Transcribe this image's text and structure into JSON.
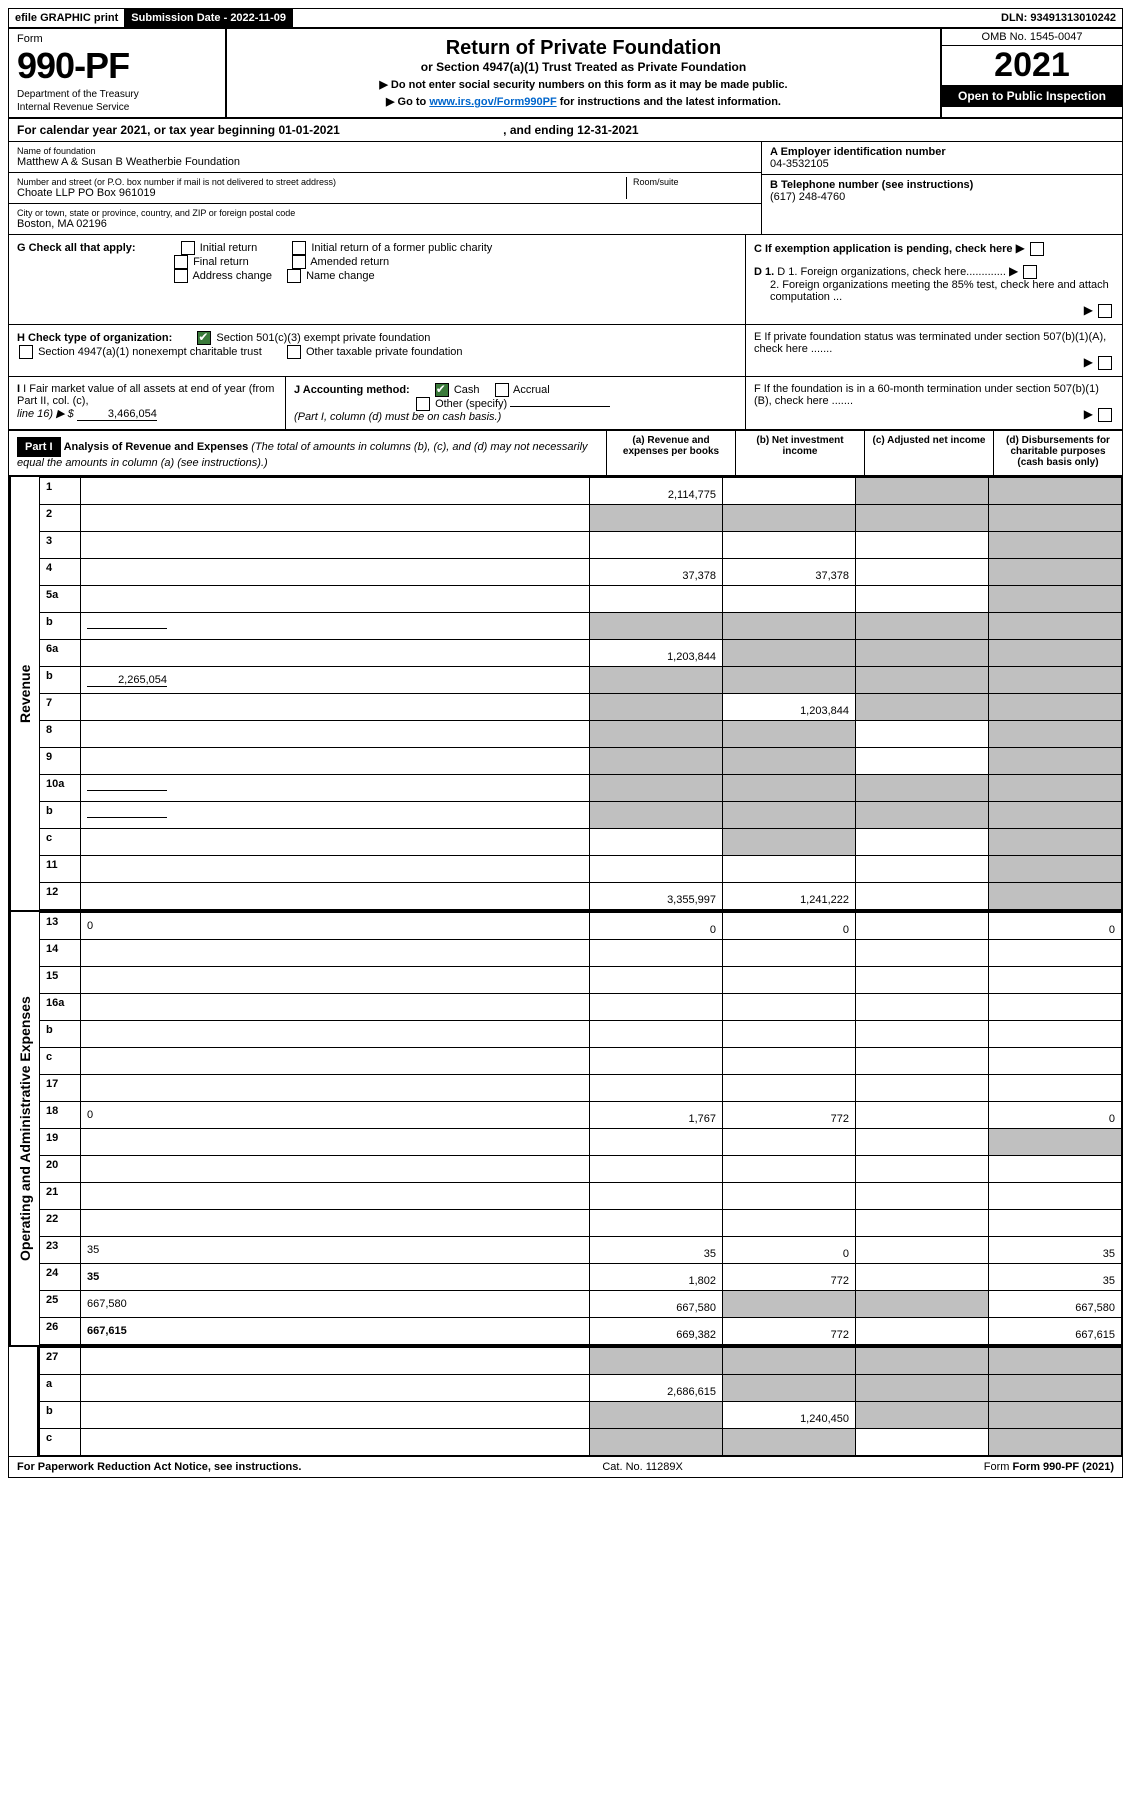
{
  "top": {
    "efile": "efile GRAPHIC print",
    "subdate_label": "Submission Date - 2022-11-09",
    "dln": "DLN: 93491313010242"
  },
  "formbox": {
    "form_label": "Form",
    "form_no": "990-PF",
    "dept1": "Department of the Treasury",
    "dept2": "Internal Revenue Service"
  },
  "title": {
    "main": "Return of Private Foundation",
    "sub": "or Section 4947(a)(1) Trust Treated as Private Foundation",
    "line1": "▶ Do not enter social security numbers on this form as it may be made public.",
    "line2_pre": "▶ Go to ",
    "line2_link": "www.irs.gov/Form990PF",
    "line2_post": " for instructions and the latest information."
  },
  "yearbox": {
    "omb": "OMB No. 1545-0047",
    "year": "2021",
    "open": "Open to Public Inspection"
  },
  "calrow": {
    "text_a": "For calendar year 2021, or tax year beginning 01-01-2021",
    "text_b": ", and ending 12-31-2021"
  },
  "info": {
    "name_label": "Name of foundation",
    "name": "Matthew A & Susan B Weatherbie Foundation",
    "addr_label": "Number and street (or P.O. box number if mail is not delivered to street address)",
    "addr": "Choate LLP PO Box 961019",
    "room_label": "Room/suite",
    "city_label": "City or town, state or province, country, and ZIP or foreign postal code",
    "city": "Boston, MA  02196",
    "a_label": "A Employer identification number",
    "a_val": "04-3532105",
    "b_label": "B Telephone number (see instructions)",
    "b_val": "(617) 248-4760",
    "c_label": "C If exemption application is pending, check here",
    "d1": "D 1. Foreign organizations, check here.............",
    "d2": "2. Foreign organizations meeting the 85% test, check here and attach computation ...",
    "e": "E  If private foundation status was terminated under section 507(b)(1)(A), check here .......",
    "f": "F  If the foundation is in a 60-month termination under section 507(b)(1)(B), check here ......."
  },
  "g": {
    "label": "G Check all that apply:",
    "o1": "Initial return",
    "o2": "Final return",
    "o3": "Address change",
    "o4": "Initial return of a former public charity",
    "o5": "Amended return",
    "o6": "Name change"
  },
  "h": {
    "label": "H Check type of organization:",
    "o1": "Section 501(c)(3) exempt private foundation",
    "o2": "Section 4947(a)(1) nonexempt charitable trust",
    "o3": "Other taxable private foundation"
  },
  "i": {
    "label": "I Fair market value of all assets at end of year (from Part II, col. (c),",
    "line": "line 16) ▶ $",
    "val": "3,466,054"
  },
  "j": {
    "label": "J Accounting method:",
    "o1": "Cash",
    "o2": "Accrual",
    "o3": "Other (specify)",
    "note": "(Part I, column (d) must be on cash basis.)"
  },
  "part1": {
    "label": "Part I",
    "title": "Analysis of Revenue and Expenses",
    "note": "(The total of amounts in columns (b), (c), and (d) may not necessarily equal the amounts in column (a) (see instructions).)",
    "col_a": "(a)  Revenue and expenses per books",
    "col_b": "(b)  Net investment income",
    "col_c": "(c)  Adjusted net income",
    "col_d": "(d)  Disbursements for charitable purposes (cash basis only)"
  },
  "vlabels": {
    "rev": "Revenue",
    "exp": "Operating and Administrative Expenses"
  },
  "rows": [
    {
      "n": "1",
      "d": "",
      "a": "2,114,775",
      "b": "",
      "c": "",
      "shade_c": true,
      "shade_d": true
    },
    {
      "n": "2",
      "d": "",
      "nodots": true,
      "a": "",
      "b": "",
      "c": "",
      "shade_a": true,
      "shade_b": true,
      "shade_c": true,
      "shade_d": true
    },
    {
      "n": "3",
      "d": "",
      "a": "",
      "b": "",
      "c": "",
      "shade_d": true
    },
    {
      "n": "4",
      "d": "",
      "a": "37,378",
      "b": "37,378",
      "c": "",
      "shade_d": true
    },
    {
      "n": "5a",
      "d": "",
      "a": "",
      "b": "",
      "c": "",
      "shade_d": true
    },
    {
      "n": "b",
      "d": "",
      "inline": "",
      "a": "",
      "b": "",
      "c": "",
      "shade_a": true,
      "shade_b": true,
      "shade_c": true,
      "shade_d": true
    },
    {
      "n": "6a",
      "d": "",
      "a": "1,203,844",
      "b": "",
      "c": "",
      "shade_b": true,
      "shade_c": true,
      "shade_d": true
    },
    {
      "n": "b",
      "d": "",
      "inline": "2,265,054",
      "a": "",
      "b": "",
      "c": "",
      "shade_a": true,
      "shade_b": true,
      "shade_c": true,
      "shade_d": true
    },
    {
      "n": "7",
      "d": "",
      "a": "",
      "b": "1,203,844",
      "c": "",
      "shade_a": true,
      "shade_c": true,
      "shade_d": true
    },
    {
      "n": "8",
      "d": "",
      "a": "",
      "b": "",
      "c": "",
      "shade_a": true,
      "shade_b": true,
      "shade_d": true
    },
    {
      "n": "9",
      "d": "",
      "a": "",
      "b": "",
      "c": "",
      "shade_a": true,
      "shade_b": true,
      "shade_d": true
    },
    {
      "n": "10a",
      "d": "",
      "inline": "",
      "a": "",
      "b": "",
      "c": "",
      "shade_a": true,
      "shade_b": true,
      "shade_c": true,
      "shade_d": true
    },
    {
      "n": "b",
      "d": "",
      "inline": "",
      "a": "",
      "b": "",
      "c": "",
      "shade_a": true,
      "shade_b": true,
      "shade_c": true,
      "shade_d": true
    },
    {
      "n": "c",
      "d": "",
      "a": "",
      "b": "",
      "c": "",
      "shade_b": true,
      "shade_d": true
    },
    {
      "n": "11",
      "d": "",
      "a": "",
      "b": "",
      "c": "",
      "shade_d": true
    },
    {
      "n": "12",
      "d": "",
      "bold": true,
      "a": "3,355,997",
      "b": "1,241,222",
      "c": "",
      "shade_d": true
    }
  ],
  "exprows": [
    {
      "n": "13",
      "d": "0",
      "a": "0",
      "b": "0",
      "c": ""
    },
    {
      "n": "14",
      "d": "",
      "a": "",
      "b": "",
      "c": ""
    },
    {
      "n": "15",
      "d": "",
      "a": "",
      "b": "",
      "c": ""
    },
    {
      "n": "16a",
      "d": "",
      "a": "",
      "b": "",
      "c": ""
    },
    {
      "n": "b",
      "d": "",
      "a": "",
      "b": "",
      "c": ""
    },
    {
      "n": "c",
      "d": "",
      "a": "",
      "b": "",
      "c": ""
    },
    {
      "n": "17",
      "d": "",
      "a": "",
      "b": "",
      "c": ""
    },
    {
      "n": "18",
      "d": "0",
      "a": "1,767",
      "b": "772",
      "c": ""
    },
    {
      "n": "19",
      "d": "",
      "a": "",
      "b": "",
      "c": "",
      "shade_d": true
    },
    {
      "n": "20",
      "d": "",
      "a": "",
      "b": "",
      "c": ""
    },
    {
      "n": "21",
      "d": "",
      "a": "",
      "b": "",
      "c": ""
    },
    {
      "n": "22",
      "d": "",
      "a": "",
      "b": "",
      "c": ""
    },
    {
      "n": "23",
      "d": "35",
      "a": "35",
      "b": "0",
      "c": ""
    },
    {
      "n": "24",
      "d": "35",
      "bold": true,
      "a": "1,802",
      "b": "772",
      "c": ""
    },
    {
      "n": "25",
      "d": "667,580",
      "a": "667,580",
      "b": "",
      "c": "",
      "shade_b": true,
      "shade_c": true
    },
    {
      "n": "26",
      "d": "667,615",
      "bold": true,
      "a": "669,382",
      "b": "772",
      "c": ""
    }
  ],
  "botrows": [
    {
      "n": "27",
      "d": "",
      "a": "",
      "b": "",
      "c": "",
      "shade_a": true,
      "shade_b": true,
      "shade_c": true,
      "shade_d": true
    },
    {
      "n": "a",
      "d": "",
      "bold": true,
      "a": "2,686,615",
      "b": "",
      "c": "",
      "shade_b": true,
      "shade_c": true,
      "shade_d": true
    },
    {
      "n": "b",
      "d": "",
      "bold": true,
      "a": "",
      "b": "1,240,450",
      "c": "",
      "shade_a": true,
      "shade_c": true,
      "shade_d": true
    },
    {
      "n": "c",
      "d": "",
      "bold": true,
      "a": "",
      "b": "",
      "c": "",
      "shade_a": true,
      "shade_b": true,
      "shade_d": true
    }
  ],
  "footer": {
    "left": "For Paperwork Reduction Act Notice, see instructions.",
    "mid": "Cat. No. 11289X",
    "right": "Form 990-PF (2021)"
  }
}
